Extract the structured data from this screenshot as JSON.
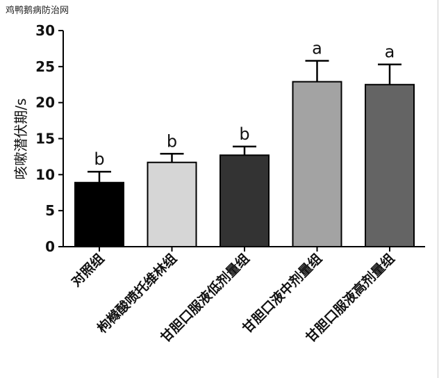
{
  "watermark": "鸡鸭鹅病防治网",
  "chart_data": {
    "type": "bar",
    "ylabel": "咳嗽潜伏期/s",
    "xlabel": "",
    "ylim": [
      0,
      30
    ],
    "yticks": [
      0,
      5,
      10,
      15,
      20,
      25,
      30
    ],
    "categories": [
      "对照组",
      "枸橼酸喷托维林组",
      "甘胆口服液低剂量组",
      "甘胆口液中剂量组",
      "甘胆口服液高剂量组"
    ],
    "values": [
      8.9,
      11.7,
      12.7,
      22.9,
      22.5
    ],
    "errors": [
      1.5,
      1.2,
      1.2,
      2.9,
      2.8
    ],
    "significance": [
      "b",
      "b",
      "b",
      "a",
      "a"
    ],
    "colors": [
      "#000000",
      "#d6d6d6",
      "#333333",
      "#a3a3a3",
      "#646464"
    ],
    "grid": false,
    "legend": "none"
  }
}
